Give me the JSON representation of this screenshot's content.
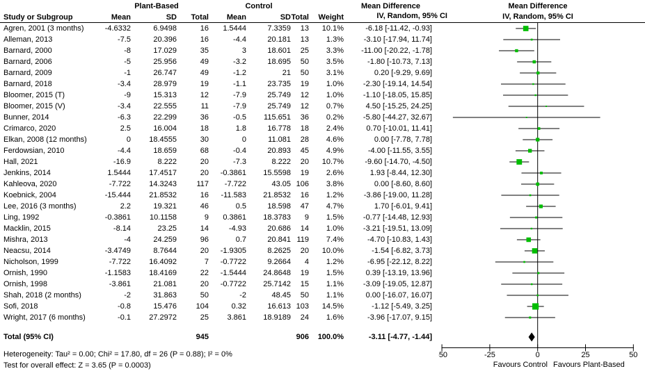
{
  "table": {
    "group_headers": {
      "plant_based": "Plant-Based",
      "control": "Control",
      "mean_difference": "Mean Difference"
    },
    "columns": {
      "study": "Study or Subgroup",
      "mean": "Mean",
      "sd": "SD",
      "total": "Total",
      "mean2": "Mean",
      "sd2": "SD",
      "total2": "Total",
      "weight": "Weight",
      "ci": "IV, Random, 95% CI"
    }
  },
  "plot": {
    "header_line1": "Mean Difference",
    "header_line2": "IV, Random, 95% CI"
  },
  "footer": {
    "heterogeneity": "Heterogeneity: Tau² = 0.00; Chi² = 17.80, df = 26 (P = 0.88); I² = 0%",
    "overall_effect": "Test for overall effect: Z = 3.65 (P = 0.0003)"
  },
  "colors": {
    "marker_green": "#00BD00",
    "line_black": "#000000",
    "diamond_black": "#000000"
  },
  "chart_data": {
    "type": "forest",
    "effect_measure": "Mean Difference IV, Random, 95% CI",
    "axis": {
      "xlim": [
        -50,
        50
      ],
      "ticks": [
        -50,
        -25,
        0,
        25,
        50
      ],
      "label_left": "Favours Control",
      "label_right": "Favours Plant-Based"
    },
    "studies": [
      {
        "study": "Agren, 2001 (3 months)",
        "pb_mean": "-4.6332",
        "pb_sd": "6.9498",
        "pb_total": "16",
        "c_mean": "1.5444",
        "c_sd": "7.3359",
        "c_total": "13",
        "weight": "10.1%",
        "weight_pct": 10.1,
        "md": -6.18,
        "ci_low": -11.42,
        "ci_high": -0.93,
        "ci_text": "-6.18 [-11.42, -0.93]"
      },
      {
        "study": "Alleman, 2013",
        "pb_mean": "-7.5",
        "pb_sd": "20.396",
        "pb_total": "16",
        "c_mean": "-4.4",
        "c_sd": "20.181",
        "c_total": "13",
        "weight": "1.3%",
        "weight_pct": 1.3,
        "md": -3.1,
        "ci_low": -17.94,
        "ci_high": 11.74,
        "ci_text": "-3.10 [-17.94, 11.74]"
      },
      {
        "study": "Barnard, 2000",
        "pb_mean": "-8",
        "pb_sd": "17.029",
        "pb_total": "35",
        "c_mean": "3",
        "c_sd": "18.601",
        "c_total": "25",
        "weight": "3.3%",
        "weight_pct": 3.3,
        "md": -11.0,
        "ci_low": -20.22,
        "ci_high": -1.78,
        "ci_text": "-11.00 [-20.22, -1.78]"
      },
      {
        "study": "Barnard, 2006",
        "pb_mean": "-5",
        "pb_sd": "25.956",
        "pb_total": "49",
        "c_mean": "-3.2",
        "c_sd": "18.695",
        "c_total": "50",
        "weight": "3.5%",
        "weight_pct": 3.5,
        "md": -1.8,
        "ci_low": -10.73,
        "ci_high": 7.13,
        "ci_text": "-1.80 [-10.73, 7.13]"
      },
      {
        "study": "Barnard, 2009",
        "pb_mean": "-1",
        "pb_sd": "26.747",
        "pb_total": "49",
        "c_mean": "-1.2",
        "c_sd": "21",
        "c_total": "50",
        "weight": "3.1%",
        "weight_pct": 3.1,
        "md": 0.2,
        "ci_low": -9.29,
        "ci_high": 9.69,
        "ci_text": "0.20 [-9.29, 9.69]"
      },
      {
        "study": "Barnard, 2018",
        "pb_mean": "-3.4",
        "pb_sd": "28.979",
        "pb_total": "19",
        "c_mean": "-1.1",
        "c_sd": "23.735",
        "c_total": "19",
        "weight": "1.0%",
        "weight_pct": 1.0,
        "md": -2.3,
        "ci_low": -19.14,
        "ci_high": 14.54,
        "ci_text": "-2.30 [-19.14, 14.54]"
      },
      {
        "study": "Bloomer, 2015 (T)",
        "pb_mean": "-9",
        "pb_sd": "15.313",
        "pb_total": "12",
        "c_mean": "-7.9",
        "c_sd": "25.749",
        "c_total": "12",
        "weight": "1.0%",
        "weight_pct": 1.0,
        "md": -1.1,
        "ci_low": -18.05,
        "ci_high": 15.85,
        "ci_text": "-1.10 [-18.05, 15.85]"
      },
      {
        "study": "Bloomer, 2015 (V)",
        "pb_mean": "-3.4",
        "pb_sd": "22.555",
        "pb_total": "11",
        "c_mean": "-7.9",
        "c_sd": "25.749",
        "c_total": "12",
        "weight": "0.7%",
        "weight_pct": 0.7,
        "md": 4.5,
        "ci_low": -15.25,
        "ci_high": 24.25,
        "ci_text": "4.50 [-15.25, 24.25]"
      },
      {
        "study": "Bunner, 2014",
        "pb_mean": "-6.3",
        "pb_sd": "22.299",
        "pb_total": "36",
        "c_mean": "-0.5",
        "c_sd": "115.651",
        "c_total": "36",
        "weight": "0.2%",
        "weight_pct": 0.2,
        "md": -5.8,
        "ci_low": -44.27,
        "ci_high": 32.67,
        "ci_text": "-5.80 [-44.27, 32.67]"
      },
      {
        "study": "Crimarco, 2020",
        "pb_mean": "2.5",
        "pb_sd": "16.004",
        "pb_total": "18",
        "c_mean": "1.8",
        "c_sd": "16.778",
        "c_total": "18",
        "weight": "2.4%",
        "weight_pct": 2.4,
        "md": 0.7,
        "ci_low": -10.01,
        "ci_high": 11.41,
        "ci_text": "0.70 [-10.01, 11.41]"
      },
      {
        "study": "Elkan, 2008 (12 months)",
        "pb_mean": "0",
        "pb_sd": "18.4555",
        "pb_total": "30",
        "c_mean": "0",
        "c_sd": "11.081",
        "c_total": "28",
        "weight": "4.6%",
        "weight_pct": 4.6,
        "md": 0.0,
        "ci_low": -7.78,
        "ci_high": 7.78,
        "ci_text": "0.00 [-7.78, 7.78]"
      },
      {
        "study": "Ferdowsian, 2010",
        "pb_mean": "-4.4",
        "pb_sd": "18.659",
        "pb_total": "68",
        "c_mean": "-0.4",
        "c_sd": "20.893",
        "c_total": "45",
        "weight": "4.9%",
        "weight_pct": 4.9,
        "md": -4.0,
        "ci_low": -11.55,
        "ci_high": 3.55,
        "ci_text": "-4.00 [-11.55, 3.55]"
      },
      {
        "study": "Hall, 2021",
        "pb_mean": "-16.9",
        "pb_sd": "8.222",
        "pb_total": "20",
        "c_mean": "-7.3",
        "c_sd": "8.222",
        "c_total": "20",
        "weight": "10.7%",
        "weight_pct": 10.7,
        "md": -9.6,
        "ci_low": -14.7,
        "ci_high": -4.5,
        "ci_text": "-9.60 [-14.70, -4.50]"
      },
      {
        "study": "Jenkins, 2014",
        "pb_mean": "1.5444",
        "pb_sd": "17.4517",
        "pb_total": "20",
        "c_mean": "-0.3861",
        "c_sd": "15.5598",
        "c_total": "19",
        "weight": "2.6%",
        "weight_pct": 2.6,
        "md": 1.93,
        "ci_low": -8.44,
        "ci_high": 12.3,
        "ci_text": "1.93 [-8.44, 12.30]"
      },
      {
        "study": "Kahleova, 2020",
        "pb_mean": "-7.722",
        "pb_sd": "14.3243",
        "pb_total": "117",
        "c_mean": "-7.722",
        "c_sd": "43.05",
        "c_total": "106",
        "weight": "3.8%",
        "weight_pct": 3.8,
        "md": 0.0,
        "ci_low": -8.6,
        "ci_high": 8.6,
        "ci_text": "0.00 [-8.60, 8.60]"
      },
      {
        "study": "Koebnick, 2004",
        "pb_mean": "-15.444",
        "pb_sd": "21.8532",
        "pb_total": "16",
        "c_mean": "-11.583",
        "c_sd": "21.8532",
        "c_total": "16",
        "weight": "1.2%",
        "weight_pct": 1.2,
        "md": -3.86,
        "ci_low": -19.0,
        "ci_high": 11.28,
        "ci_text": "-3.86 [-19.00, 11.28]"
      },
      {
        "study": "Lee, 2016 (3 months)",
        "pb_mean": "2.2",
        "pb_sd": "19.321",
        "pb_total": "46",
        "c_mean": "0.5",
        "c_sd": "18.598",
        "c_total": "47",
        "weight": "4.7%",
        "weight_pct": 4.7,
        "md": 1.7,
        "ci_low": -6.01,
        "ci_high": 9.41,
        "ci_text": "1.70 [-6.01, 9.41]"
      },
      {
        "study": "Ling, 1992",
        "pb_mean": "-0.3861",
        "pb_sd": "10.1158",
        "pb_total": "9",
        "c_mean": "0.3861",
        "c_sd": "18.3783",
        "c_total": "9",
        "weight": "1.5%",
        "weight_pct": 1.5,
        "md": -0.77,
        "ci_low": -14.48,
        "ci_high": 12.93,
        "ci_text": "-0.77 [-14.48, 12.93]"
      },
      {
        "study": "Macklin, 2015",
        "pb_mean": "-8.14",
        "pb_sd": "23.25",
        "pb_total": "14",
        "c_mean": "-4.93",
        "c_sd": "20.686",
        "c_total": "14",
        "weight": "1.0%",
        "weight_pct": 1.0,
        "md": -3.21,
        "ci_low": -19.51,
        "ci_high": 13.09,
        "ci_text": "-3.21 [-19.51, 13.09]"
      },
      {
        "study": "Mishra, 2013",
        "pb_mean": "-4",
        "pb_sd": "24.259",
        "pb_total": "96",
        "c_mean": "0.7",
        "c_sd": "20.841",
        "c_total": "119",
        "weight": "7.4%",
        "weight_pct": 7.4,
        "md": -4.7,
        "ci_low": -10.83,
        "ci_high": 1.43,
        "ci_text": "-4.70 [-10.83, 1.43]"
      },
      {
        "study": "Neacsu, 2014",
        "pb_mean": "-3.4749",
        "pb_sd": "8.7644",
        "pb_total": "20",
        "c_mean": "-1.9305",
        "c_sd": "8.2625",
        "c_total": "20",
        "weight": "10.0%",
        "weight_pct": 10.0,
        "md": -1.54,
        "ci_low": -6.82,
        "ci_high": 3.73,
        "ci_text": "-1.54 [-6.82, 3.73]"
      },
      {
        "study": "Nicholson, 1999",
        "pb_mean": "-7.722",
        "pb_sd": "16.4092",
        "pb_total": "7",
        "c_mean": "-0.7722",
        "c_sd": "9.2664",
        "c_total": "4",
        "weight": "1.2%",
        "weight_pct": 1.2,
        "md": -6.95,
        "ci_low": -22.12,
        "ci_high": 8.22,
        "ci_text": "-6.95 [-22.12, 8.22]"
      },
      {
        "study": "Ornish, 1990",
        "pb_mean": "-1.1583",
        "pb_sd": "18.4169",
        "pb_total": "22",
        "c_mean": "-1.5444",
        "c_sd": "24.8648",
        "c_total": "19",
        "weight": "1.5%",
        "weight_pct": 1.5,
        "md": 0.39,
        "ci_low": -13.19,
        "ci_high": 13.96,
        "ci_text": "0.39 [-13.19, 13.96]"
      },
      {
        "study": "Ornish, 1998",
        "pb_mean": "-3.861",
        "pb_sd": "21.081",
        "pb_total": "20",
        "c_mean": "-0.7722",
        "c_sd": "25.7142",
        "c_total": "15",
        "weight": "1.1%",
        "weight_pct": 1.1,
        "md": -3.09,
        "ci_low": -19.05,
        "ci_high": 12.87,
        "ci_text": "-3.09 [-19.05, 12.87]"
      },
      {
        "study": "Shah, 2018 (2 months)",
        "pb_mean": "-2",
        "pb_sd": "31.863",
        "pb_total": "50",
        "c_mean": "-2",
        "c_sd": "48.45",
        "c_total": "50",
        "weight": "1.1%",
        "weight_pct": 1.1,
        "md": 0.0,
        "ci_low": -16.07,
        "ci_high": 16.07,
        "ci_text": "0.00 [-16.07, 16.07]"
      },
      {
        "study": "Sofi, 2018",
        "pb_mean": "-0.8",
        "pb_sd": "15.476",
        "pb_total": "104",
        "c_mean": "0.32",
        "c_sd": "16.613",
        "c_total": "103",
        "weight": "14.5%",
        "weight_pct": 14.5,
        "md": -1.12,
        "ci_low": -5.49,
        "ci_high": 3.25,
        "ci_text": "-1.12 [-5.49, 3.25]"
      },
      {
        "study": "Wright, 2017 (6 months)",
        "pb_mean": "-0.1",
        "pb_sd": "27.2972",
        "pb_total": "25",
        "c_mean": "3.861",
        "c_sd": "18.9189",
        "c_total": "24",
        "weight": "1.6%",
        "weight_pct": 1.6,
        "md": -3.96,
        "ci_low": -17.07,
        "ci_high": 9.15,
        "ci_text": "-3.96 [-17.07, 9.15]"
      }
    ],
    "total": {
      "label": "Total (95% CI)",
      "pb_total": "945",
      "c_total": "906",
      "weight": "100.0%",
      "md": -3.11,
      "ci_low": -4.77,
      "ci_high": -1.44,
      "ci_text": "-3.11 [-4.77, -1.44]"
    }
  }
}
